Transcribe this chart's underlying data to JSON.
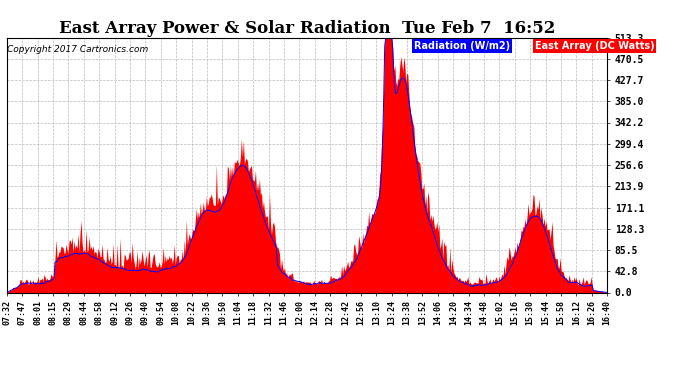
{
  "title": "East Array Power & Solar Radiation  Tue Feb 7  16:52",
  "copyright_text": "Copyright 2017 Cartronics.com",
  "legend_label_radiation": "Radiation (W/m2)",
  "legend_label_dc": "East Array (DC Watts)",
  "legend_bg_radiation": "blue",
  "legend_bg_dc": "red",
  "legend_text_color": "white",
  "y_ticks": [
    0.0,
    42.8,
    85.5,
    128.3,
    171.1,
    213.9,
    256.6,
    299.4,
    342.2,
    385.0,
    427.7,
    470.5,
    513.3
  ],
  "y_max": 513.3,
  "y_min": 0.0,
  "background_color": "#ffffff",
  "plot_bg_color": "#ffffff",
  "grid_color": "#bbbbbb",
  "fill_color": "red",
  "line_color": "blue",
  "title_fontsize": 12,
  "time_labels": [
    "07:32",
    "07:47",
    "08:01",
    "08:15",
    "08:29",
    "08:44",
    "08:58",
    "09:12",
    "09:26",
    "09:40",
    "09:54",
    "10:08",
    "10:22",
    "10:36",
    "10:50",
    "11:04",
    "11:18",
    "11:32",
    "11:46",
    "12:00",
    "12:14",
    "12:28",
    "12:42",
    "12:56",
    "13:10",
    "13:24",
    "13:38",
    "13:52",
    "14:06",
    "14:20",
    "14:34",
    "14:48",
    "15:02",
    "15:16",
    "15:30",
    "15:44",
    "15:58",
    "16:12",
    "16:26",
    "16:40"
  ],
  "n_points": 600,
  "figwidth": 6.9,
  "figheight": 3.75,
  "dpi": 100
}
